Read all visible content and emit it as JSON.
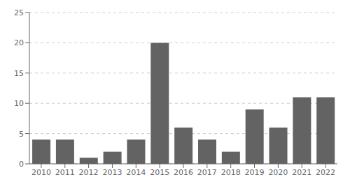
{
  "chart_data": {
    "type": "bar",
    "categories": [
      "2010",
      "2011",
      "2012",
      "2013",
      "2014",
      "2015",
      "2016",
      "2017",
      "2018",
      "2019",
      "2020",
      "2021",
      "2022"
    ],
    "values": [
      4,
      4,
      1,
      2,
      4,
      20,
      6,
      4,
      2,
      9,
      6,
      11,
      11
    ],
    "color": "#636363",
    "ylim": [
      0,
      25
    ],
    "yticks": [
      0,
      5,
      10,
      15,
      20,
      25
    ],
    "grid": true
  }
}
